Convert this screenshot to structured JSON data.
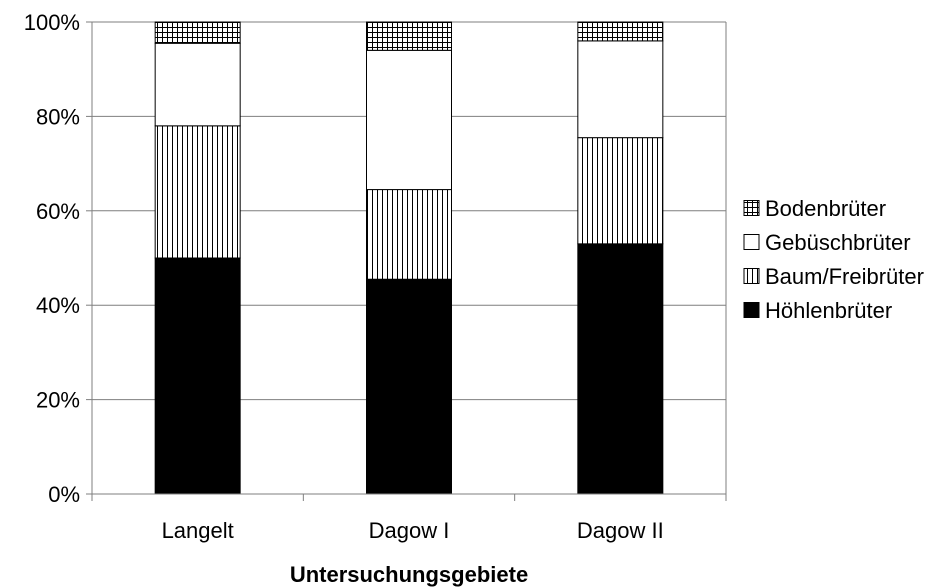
{
  "chart_data": {
    "type": "bar",
    "stacked": true,
    "percent": true,
    "categories": [
      "Langelt",
      "Dagow I",
      "Dagow II"
    ],
    "series": [
      {
        "name": "Höhlenbrüter",
        "values": [
          50,
          45.5,
          53
        ],
        "pattern": "solid",
        "color": "#000000"
      },
      {
        "name": "Baum/Freibrüter",
        "values": [
          28,
          19,
          22.5
        ],
        "pattern": "vertical-lines",
        "color": "#000000"
      },
      {
        "name": "Gebüschbrüter",
        "values": [
          17.5,
          29.5,
          20.5
        ],
        "pattern": "blank",
        "color": "#ffffff"
      },
      {
        "name": "Bodenbrüter",
        "values": [
          4.5,
          6,
          4
        ],
        "pattern": "grid",
        "color": "#000000"
      }
    ],
    "yticks": [
      "0%",
      "20%",
      "40%",
      "60%",
      "80%",
      "100%"
    ],
    "ylim": [
      0,
      100
    ],
    "xlabel": "Untersuchungsgebiete",
    "ylabel": "",
    "title": "",
    "grid": true,
    "legend_position": "right",
    "legend_order": [
      "Bodenbrüter",
      "Gebüschbrüter",
      "Baum/Freibrüter",
      "Höhlenbrüter"
    ]
  }
}
